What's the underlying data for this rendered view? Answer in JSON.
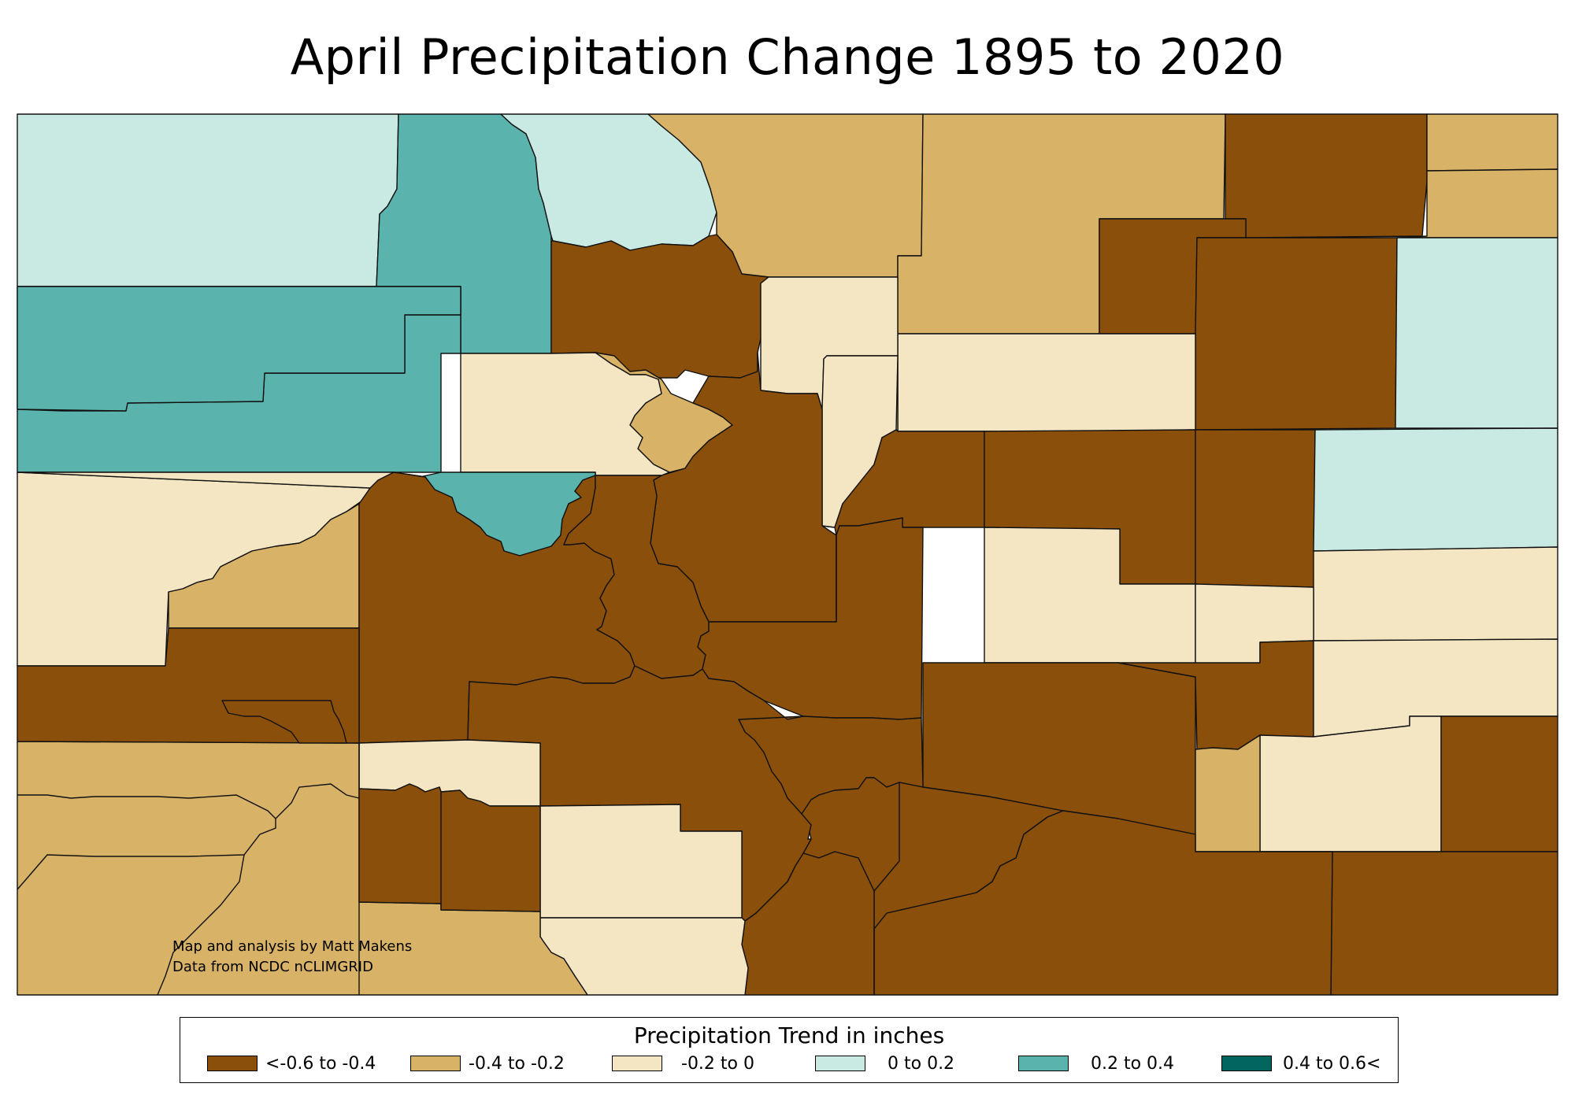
{
  "title": "April Precipitation Change 1895 to 2020",
  "credit": {
    "line1": "Map and analysis by Matt Makens",
    "line2": "Data from NCDC nCLIMGRID"
  },
  "legend": {
    "title": "Precipitation Trend in inches",
    "classes": [
      {
        "label": "<-0.6 to -0.4",
        "color": "#8B4F0C"
      },
      {
        "label": "-0.4 to -0.2",
        "color": "#D8B266"
      },
      {
        "label": "-0.2 to 0",
        "color": "#F5E6C3"
      },
      {
        "label": "0 to 0.2",
        "color": "#C8EAE3"
      },
      {
        "label": "0.2 to 0.4",
        "color": "#5AB3AC"
      },
      {
        "label": "0.4 to 0.6<",
        "color": "#02665E"
      }
    ]
  },
  "regions": [
    {
      "class": 3
    },
    {
      "class": 4
    },
    {
      "class": 3
    },
    {
      "class": 1
    },
    {
      "class": 1
    },
    {
      "class": 0
    },
    {
      "class": 1
    },
    {
      "class": 0
    },
    {
      "class": 0
    },
    {
      "class": 1
    },
    {
      "class": 4
    },
    {
      "class": 3
    },
    {
      "class": 4
    },
    {
      "class": 2
    },
    {
      "class": 2
    },
    {
      "class": 0
    },
    {
      "class": 2
    },
    {
      "class": 2
    },
    {
      "class": 1
    },
    {
      "class": 0
    },
    {
      "class": 0
    },
    {
      "class": 0
    },
    {
      "class": 0
    },
    {
      "class": 3
    },
    {
      "class": 2
    },
    {
      "class": 4
    },
    {
      "class": 2
    },
    {
      "class": 2
    },
    {
      "class": 1
    },
    {
      "class": 0
    },
    {
      "class": 0
    },
    {
      "class": 0
    },
    {
      "class": 0
    },
    {
      "class": 2
    },
    {
      "class": 2
    },
    {
      "class": 2
    },
    {
      "class": 0
    },
    {
      "class": 0
    },
    {
      "class": 0
    },
    {
      "class": 2
    },
    {
      "class": 2
    },
    {
      "class": 0
    },
    {
      "class": 1
    },
    {
      "class": 0
    },
    {
      "class": 0
    },
    {
      "class": 0
    },
    {
      "class": 0
    },
    {
      "class": 0
    },
    {
      "class": 2
    },
    {
      "class": 2
    },
    {
      "class": 2
    },
    {
      "class": 1
    },
    {
      "class": 0
    },
    {
      "class": 0
    },
    {
      "class": 0
    }
  ]
}
